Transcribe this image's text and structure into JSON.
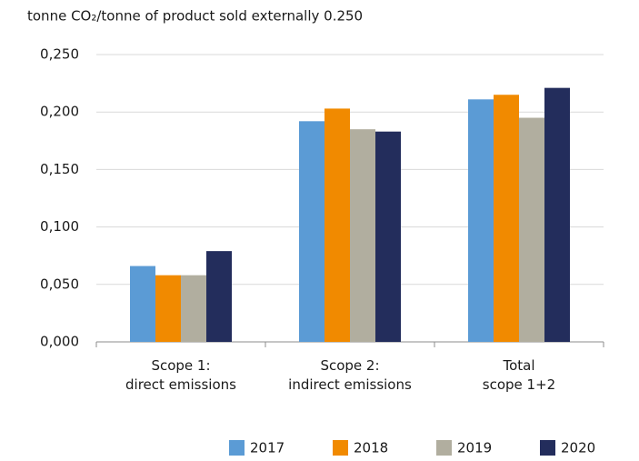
{
  "chart_data": {
    "type": "bar",
    "title": "tonne CO₂/tonne of product sold externally 0.250",
    "categories": [
      "Scope 1:\ndirect emissions",
      "Scope 2:\nindirect emissions",
      "Total\nscope 1+2"
    ],
    "series": [
      {
        "name": "2017",
        "color": "#5b9bd5",
        "values": [
          0.066,
          0.192,
          0.211
        ]
      },
      {
        "name": "2018",
        "color": "#f18a00",
        "values": [
          0.058,
          0.203,
          0.215
        ]
      },
      {
        "name": "2019",
        "color": "#b1ae9f",
        "values": [
          0.058,
          0.185,
          0.195
        ]
      },
      {
        "name": "2020",
        "color": "#232d5c",
        "values": [
          0.079,
          0.183,
          0.221
        ]
      }
    ],
    "ylim": [
      0,
      0.25
    ],
    "yticks": [
      {
        "value": 0,
        "label": "0,000"
      },
      {
        "value": 0.05,
        "label": "0,050"
      },
      {
        "value": 0.1,
        "label": "0,100"
      },
      {
        "value": 0.15,
        "label": "0,150"
      },
      {
        "value": 0.2,
        "label": "0,200"
      },
      {
        "value": 0.25,
        "label": "0,250"
      }
    ],
    "grid": true,
    "legend": "bottom-right"
  }
}
